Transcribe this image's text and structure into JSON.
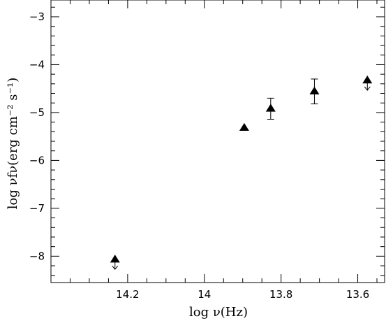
{
  "chart_data": {
    "type": "scatter",
    "title": "",
    "xlabel": "log ν(Hz)",
    "ylabel": "log νfν(erg cm⁻² s⁻¹)",
    "xlim": [
      14.4,
      13.53
    ],
    "ylim": [
      -8.55,
      -2.65
    ],
    "x_reversed": true,
    "x_ticks": [
      14.2,
      14.0,
      13.8,
      13.6
    ],
    "x_tick_labels": [
      "14.2",
      "14",
      "13.8",
      "13.6"
    ],
    "y_ticks": [
      -3,
      -4,
      -5,
      -6,
      -7,
      -8
    ],
    "y_tick_labels": [
      "−3",
      "−4",
      "−5",
      "−6",
      "−7",
      "−8"
    ],
    "grid": false,
    "marker": "filled-triangle",
    "series": [
      {
        "points": [
          {
            "x": 14.233,
            "y": -8.07,
            "upper_limit": true
          },
          {
            "x": 13.896,
            "y": -5.32
          },
          {
            "x": 13.827,
            "y": -4.92,
            "err": 0.22
          },
          {
            "x": 13.713,
            "y": -4.56,
            "err": 0.26
          },
          {
            "x": 13.575,
            "y": -4.33,
            "upper_limit": true
          }
        ]
      }
    ]
  }
}
